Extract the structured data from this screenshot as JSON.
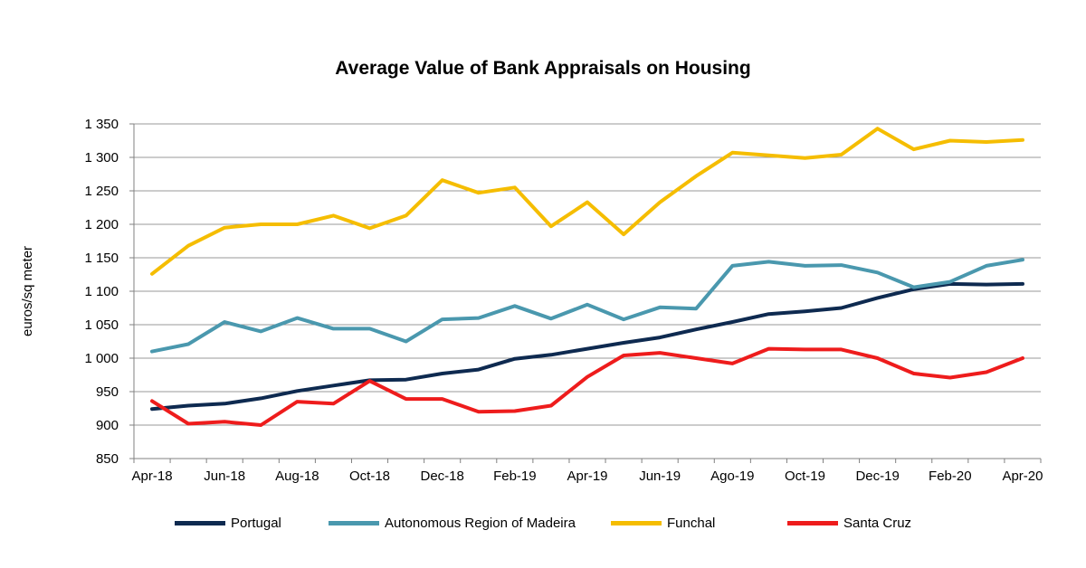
{
  "chart_data": {
    "type": "line",
    "title": "Average Value of Bank Appraisals on Housing",
    "xlabel": "",
    "ylabel": "euros/sq meter",
    "ylim": [
      850,
      1350
    ],
    "yticks": [
      850,
      900,
      950,
      1000,
      1050,
      1100,
      1150,
      1200,
      1250,
      1300,
      1350
    ],
    "ytick_labels": [
      "850",
      "900",
      "950",
      "1 000",
      "1 050",
      "1 100",
      "1 150",
      "1 200",
      "1 250",
      "1 300",
      "1 350"
    ],
    "x": [
      "Apr-18",
      "May-18",
      "Jun-18",
      "Jul-18",
      "Aug-18",
      "Sep-18",
      "Oct-18",
      "Nov-18",
      "Dec-18",
      "Jan-19",
      "Feb-19",
      "Mar-19",
      "Apr-19",
      "May-19",
      "Jun-19",
      "Jul-19",
      "Ago-19",
      "Sep-19",
      "Oct-19",
      "Nov-19",
      "Dec-19",
      "Jan-20",
      "Feb-20",
      "Mar-20",
      "Apr-20"
    ],
    "xtick_labels": [
      "Apr-18",
      "Jun-18",
      "Aug-18",
      "Oct-18",
      "Dec-18",
      "Feb-19",
      "Apr-19",
      "Jun-19",
      "Ago-19",
      "Oct-19",
      "Dec-19",
      "Feb-20",
      "Apr-20"
    ],
    "grid": "horizontal",
    "legend_position": "bottom",
    "series": [
      {
        "name": "Portugal",
        "color": "#0e2a50",
        "values": [
          924,
          929,
          932,
          940,
          951,
          959,
          967,
          968,
          977,
          983,
          999,
          1005,
          1014,
          1023,
          1031,
          1043,
          1054,
          1066,
          1070,
          1075,
          1090,
          1103,
          1111,
          1110,
          1111
        ]
      },
      {
        "name": "Autonomous Region of Madeira",
        "color": "#4a98ae",
        "values": [
          1010,
          1021,
          1054,
          1040,
          1060,
          1044,
          1044,
          1025,
          1058,
          1060,
          1078,
          1059,
          1080,
          1058,
          1076,
          1074,
          1138,
          1144,
          1138,
          1139,
          1128,
          1106,
          1114,
          1138,
          1147
        ]
      },
      {
        "name": "Funchal",
        "color": "#f5bd00",
        "values": [
          1126,
          1168,
          1195,
          1200,
          1200,
          1213,
          1194,
          1213,
          1266,
          1247,
          1255,
          1197,
          1233,
          1185,
          1233,
          1272,
          1307,
          1303,
          1299,
          1304,
          1343,
          1312,
          1325,
          1323,
          1326
        ]
      },
      {
        "name": "Santa Cruz",
        "color": "#ee1c1c",
        "values": [
          936,
          902,
          905,
          900,
          935,
          932,
          966,
          939,
          939,
          920,
          921,
          929,
          972,
          1004,
          1008,
          1000,
          992,
          1014,
          1013,
          1013,
          1000,
          977,
          971,
          979,
          1000
        ]
      }
    ]
  }
}
